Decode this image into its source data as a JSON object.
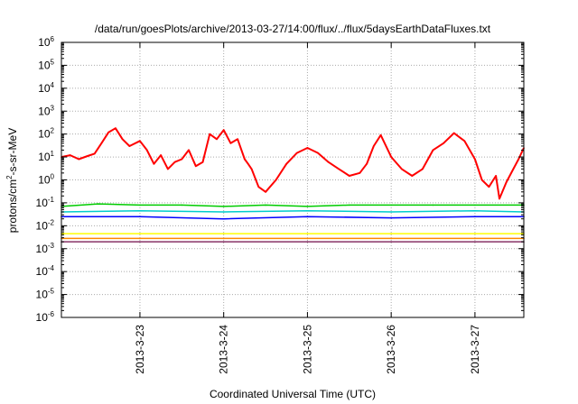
{
  "chart_data": {
    "type": "line",
    "title": "/data/run/goesPlots/archive/2013-03-27/14:00/flux/../flux/5daysEarthDataFluxes.txt",
    "xlabel": "Coordinated Universal Time (UTC)",
    "ylabel": {
      "pre": "protons/cm",
      "sup": "2",
      "post": "-s-sr-MeV"
    },
    "yscale": "log",
    "ylim": [
      1e-06,
      1000000.0
    ],
    "xlim": [
      "2013-03-22T01:30",
      "2013-03-27T14:00"
    ],
    "grid": true,
    "y_ticks": [
      {
        "value": 1e-06,
        "exp": "-6"
      },
      {
        "value": 1e-05,
        "exp": "-5"
      },
      {
        "value": 0.0001,
        "exp": "-4"
      },
      {
        "value": 0.001,
        "exp": "-3"
      },
      {
        "value": 0.01,
        "exp": "-2"
      },
      {
        "value": 0.1,
        "exp": "-1"
      },
      {
        "value": 1,
        "exp": "0"
      },
      {
        "value": 10,
        "exp": "1"
      },
      {
        "value": 100,
        "exp": "2"
      },
      {
        "value": 1000,
        "exp": "3"
      },
      {
        "value": 10000,
        "exp": "4"
      },
      {
        "value": 100000,
        "exp": "5"
      },
      {
        "value": 1000000,
        "exp": "6"
      }
    ],
    "y_tick_base": "10",
    "x_ticks": [
      {
        "date": "2013-03-23T00:00",
        "label": "2013-3-23"
      },
      {
        "date": "2013-03-24T00:00",
        "label": "2013-3-24"
      },
      {
        "date": "2013-03-25T00:00",
        "label": "2013-3-25"
      },
      {
        "date": "2013-03-26T00:00",
        "label": "2013-3-26"
      },
      {
        "date": "2013-03-27T00:00",
        "label": "2013-3-27"
      }
    ],
    "series": [
      {
        "color": "#ff0000",
        "x": [
          "2013-03-22T01:30",
          "2013-03-22T04:00",
          "2013-03-22T06:30",
          "2013-03-22T09:00",
          "2013-03-22T11:00",
          "2013-03-22T13:00",
          "2013-03-22T15:00",
          "2013-03-22T17:00",
          "2013-03-22T19:00",
          "2013-03-22T21:00",
          "2013-03-23T00:00",
          "2013-03-23T02:00",
          "2013-03-23T04:00",
          "2013-03-23T06:00",
          "2013-03-23T08:00",
          "2013-03-23T10:00",
          "2013-03-23T12:00",
          "2013-03-23T14:00",
          "2013-03-23T16:00",
          "2013-03-23T18:00",
          "2013-03-23T20:00",
          "2013-03-23T22:00",
          "2013-03-24T00:00",
          "2013-03-24T02:00",
          "2013-03-24T04:00",
          "2013-03-24T06:00",
          "2013-03-24T07:00",
          "2013-03-24T08:00",
          "2013-03-24T10:00",
          "2013-03-24T12:00",
          "2013-03-24T15:00",
          "2013-03-24T18:00",
          "2013-03-24T21:00",
          "2013-03-25T00:00",
          "2013-03-25T03:00",
          "2013-03-25T06:00",
          "2013-03-25T09:00",
          "2013-03-25T12:00",
          "2013-03-25T15:00",
          "2013-03-25T17:00",
          "2013-03-25T19:00",
          "2013-03-25T21:00",
          "2013-03-26T00:00",
          "2013-03-26T03:00",
          "2013-03-26T06:00",
          "2013-03-26T09:00",
          "2013-03-26T12:00",
          "2013-03-26T15:00",
          "2013-03-26T18:00",
          "2013-03-26T21:00",
          "2013-03-27T00:00",
          "2013-03-27T02:00",
          "2013-03-27T04:00",
          "2013-03-27T06:00",
          "2013-03-27T07:00",
          "2013-03-27T09:00",
          "2013-03-27T11:00",
          "2013-03-27T12:30",
          "2013-03-27T14:00"
        ],
        "y": [
          10,
          12,
          8,
          11,
          14,
          40,
          120,
          180,
          60,
          30,
          50,
          20,
          5,
          12,
          3,
          6,
          8,
          20,
          4,
          6,
          100,
          60,
          150,
          40,
          60,
          8,
          5,
          3,
          0.5,
          0.3,
          1,
          5,
          15,
          25,
          15,
          6,
          3,
          1.5,
          2,
          5,
          30,
          90,
          10,
          3,
          1.5,
          3,
          20,
          40,
          110,
          50,
          8,
          1,
          0.5,
          1.5,
          0.15,
          0.8,
          3,
          8,
          25
        ]
      },
      {
        "color": "#00cc00",
        "x": [
          "2013-03-22T01:30",
          "2013-03-22T12:00",
          "2013-03-23T00:00",
          "2013-03-23T12:00",
          "2013-03-24T00:00",
          "2013-03-24T12:00",
          "2013-03-25T00:00",
          "2013-03-25T12:00",
          "2013-03-26T00:00",
          "2013-03-26T12:00",
          "2013-03-27T00:00",
          "2013-03-27T14:00"
        ],
        "y": [
          0.07,
          0.09,
          0.08,
          0.08,
          0.07,
          0.08,
          0.07,
          0.08,
          0.08,
          0.08,
          0.08,
          0.08
        ]
      },
      {
        "color": "#00cccc",
        "x": [
          "2013-03-22T01:30",
          "2013-03-23T00:00",
          "2013-03-24T00:00",
          "2013-03-25T00:00",
          "2013-03-26T00:00",
          "2013-03-27T00:00",
          "2013-03-27T14:00"
        ],
        "y": [
          0.04,
          0.045,
          0.04,
          0.045,
          0.04,
          0.045,
          0.04
        ]
      },
      {
        "color": "#0000ff",
        "x": [
          "2013-03-22T01:30",
          "2013-03-23T00:00",
          "2013-03-24T00:00",
          "2013-03-25T00:00",
          "2013-03-26T00:00",
          "2013-03-27T00:00",
          "2013-03-27T14:00"
        ],
        "y": [
          0.025,
          0.025,
          0.02,
          0.025,
          0.022,
          0.025,
          0.025
        ]
      },
      {
        "color": "#ffff00",
        "x": [
          "2013-03-22T01:30",
          "2013-03-23T00:00",
          "2013-03-24T00:00",
          "2013-03-25T00:00",
          "2013-03-26T00:00",
          "2013-03-27T00:00",
          "2013-03-27T14:00"
        ],
        "y": [
          0.0045,
          0.0045,
          0.0045,
          0.0045,
          0.0045,
          0.0045,
          0.0045
        ]
      },
      {
        "color": "#ff8800",
        "x": [
          "2013-03-22T01:30",
          "2013-03-23T00:00",
          "2013-03-24T00:00",
          "2013-03-25T00:00",
          "2013-03-26T00:00",
          "2013-03-27T00:00",
          "2013-03-27T14:00"
        ],
        "y": [
          0.0028,
          0.0028,
          0.0028,
          0.0028,
          0.0028,
          0.0028,
          0.0028
        ]
      },
      {
        "color": "#883366",
        "x": [
          "2013-03-22T01:30",
          "2013-03-23T00:00",
          "2013-03-24T00:00",
          "2013-03-25T00:00",
          "2013-03-26T00:00",
          "2013-03-27T00:00",
          "2013-03-27T14:00"
        ],
        "y": [
          0.002,
          0.002,
          0.002,
          0.002,
          0.002,
          0.002,
          0.002
        ]
      }
    ]
  }
}
